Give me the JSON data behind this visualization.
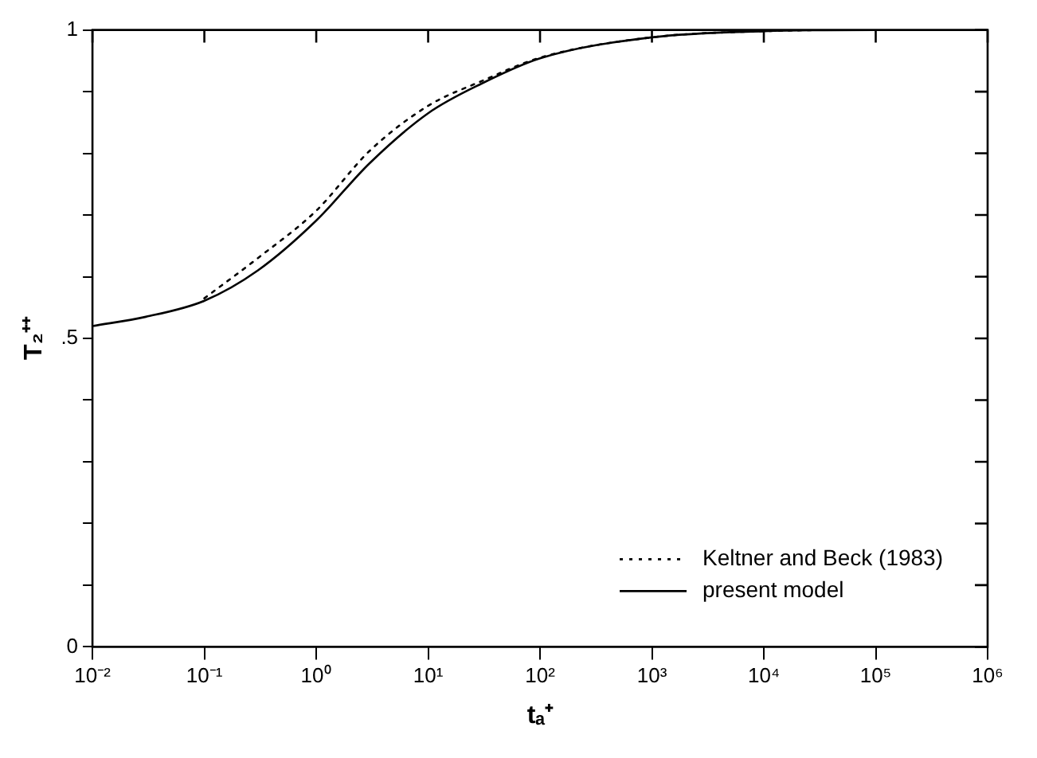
{
  "chart_data": {
    "type": "line",
    "xlabel": "tₐ⁺",
    "ylabel": "T₂⁺⁺",
    "log": "x",
    "grid": false,
    "legend": "bottom right",
    "marker": "none",
    "xlim": [
      0.01,
      1000000
    ],
    "xticks": [
      {
        "value": 0.01,
        "label": "10⁻²"
      },
      {
        "value": 0.1,
        "label": "10⁻¹"
      },
      {
        "value": 1,
        "label": "10⁰"
      },
      {
        "value": 10,
        "label": "10¹"
      },
      {
        "value": 100,
        "label": "10²"
      },
      {
        "value": 1000,
        "label": "10³"
      },
      {
        "value": 10000,
        "label": "10⁴"
      },
      {
        "value": 100000,
        "label": "10⁵"
      },
      {
        "value": 1000000,
        "label": "10⁶"
      }
    ],
    "ylim": [
      0,
      1
    ],
    "yticks": [
      0,
      {
        "value": 0.1,
        "label": null
      },
      {
        "value": 0.2,
        "label": null
      },
      {
        "value": 0.3,
        "label": null
      },
      {
        "value": 0.4,
        "label": null
      },
      {
        "value": 0.5,
        "label": ".5"
      },
      {
        "value": 0.6,
        "label": null
      },
      {
        "value": 0.7,
        "label": null
      },
      {
        "value": 0.8,
        "label": null
      },
      {
        "value": 0.9,
        "label": null
      },
      1
    ],
    "x": [
      0.01,
      0.03,
      0.1,
      0.3,
      1,
      3,
      10,
      30,
      100,
      1000,
      10000,
      100000,
      1000000
    ],
    "series": [
      {
        "name": "Keltner and Beck (1983)",
        "color": "#000000",
        "line_style": "dotted",
        "x": [
          0.1,
          0.3,
          1,
          3,
          10,
          30,
          100,
          1000,
          10000,
          100000,
          1000000
        ],
        "values": [
          0.565,
          0.63,
          0.707,
          0.804,
          0.877,
          0.917,
          0.955,
          0.988,
          0.998,
          1,
          1
        ]
      },
      {
        "name": "present model",
        "color": "#000000",
        "line_style": "solid",
        "values": [
          0.52,
          0.535,
          0.561,
          0.61,
          0.691,
          0.784,
          0.865,
          0.913,
          0.954,
          0.988,
          0.998,
          1,
          1
        ]
      }
    ]
  }
}
